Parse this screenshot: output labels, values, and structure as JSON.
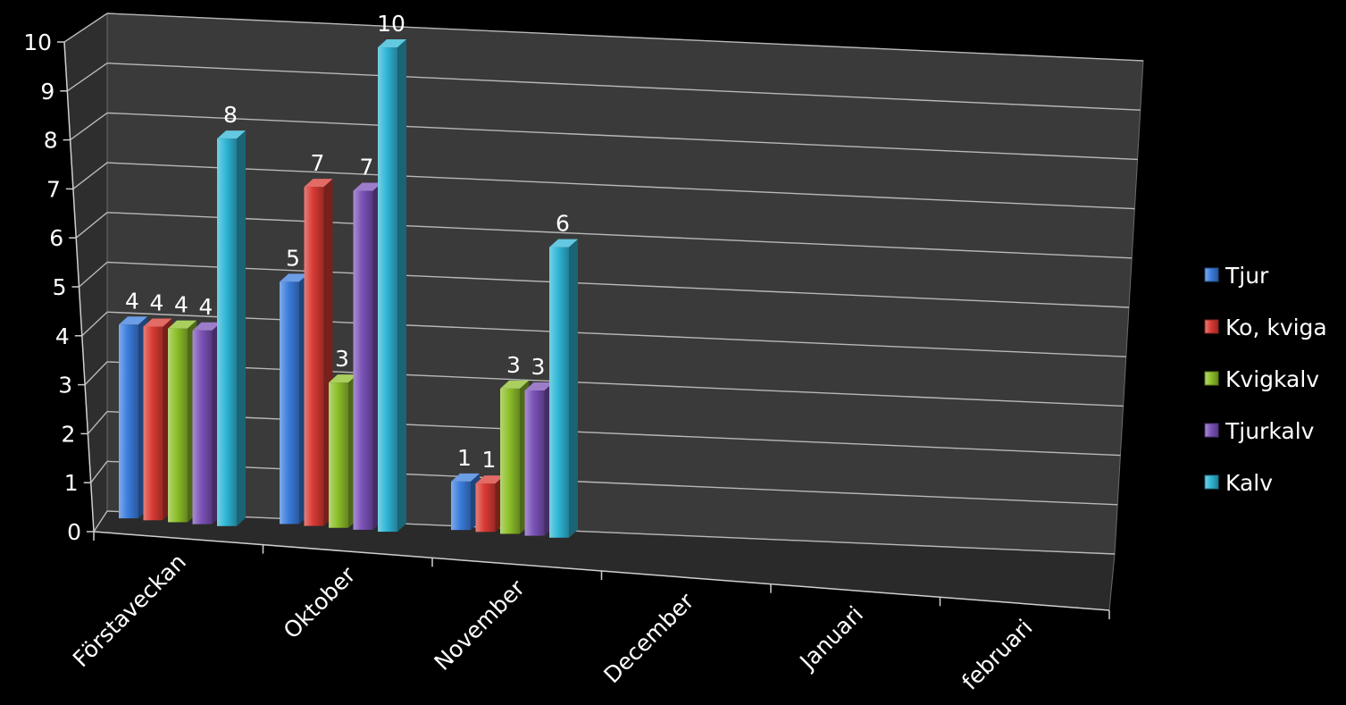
{
  "chart_data": {
    "type": "bar",
    "view": "3d-clustered-column",
    "title": "",
    "xlabel": "",
    "ylabel": "",
    "ylim": [
      0,
      10
    ],
    "y_ticks": [
      "0",
      "1",
      "2",
      "3",
      "4",
      "5",
      "6",
      "7",
      "8",
      "9",
      "10"
    ],
    "grid": true,
    "legend_position": "right",
    "categories": [
      "Förstaveckan",
      "Oktober",
      "November",
      "December",
      "Januari",
      "februari"
    ],
    "series": [
      {
        "name": "Tjur",
        "color": "#3b7ddd",
        "values": [
          4,
          5,
          1,
          null,
          null,
          null
        ],
        "labels": [
          "4",
          "5",
          "1",
          "",
          "",
          ""
        ]
      },
      {
        "name": "Ko, kviga",
        "color": "#d93a33",
        "values": [
          4,
          7,
          1,
          null,
          null,
          null
        ],
        "labels": [
          "4",
          "7",
          "1",
          "",
          "",
          ""
        ]
      },
      {
        "name": "Kvigkalv",
        "color": "#8dbf2a",
        "values": [
          4,
          3,
          3,
          null,
          null,
          null
        ],
        "labels": [
          "4",
          "3",
          "3",
          "",
          "",
          ""
        ]
      },
      {
        "name": "Tjurkalv",
        "color": "#7b52b8",
        "values": [
          4,
          7,
          3,
          null,
          null,
          null
        ],
        "labels": [
          "4",
          "7",
          "3",
          "",
          "",
          ""
        ]
      },
      {
        "name": "Kalv",
        "color": "#2fb6d6",
        "values": [
          8,
          10,
          6,
          null,
          null,
          null
        ],
        "labels": [
          "8",
          "10",
          "6",
          "",
          "",
          ""
        ]
      }
    ]
  }
}
